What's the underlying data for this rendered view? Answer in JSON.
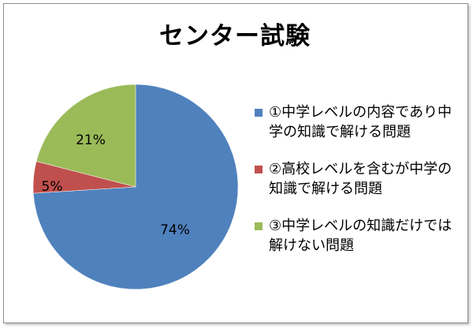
{
  "chart_data": {
    "type": "pie",
    "title": "センター試験",
    "start_angle_deg": 0,
    "direction": "clockwise",
    "slices": [
      {
        "label": "①中学レベルの内容であり中学の知識で解ける問題",
        "value": 74,
        "display": "74%",
        "color": "#4f81bd"
      },
      {
        "label": "②高校レベルを含むが中学の知識で解ける問題",
        "value": 5,
        "display": "5%",
        "color": "#c0504d"
      },
      {
        "label": "③中学レベルの知識だけでは解けない問題",
        "value": 21,
        "display": "21%",
        "color": "#9bbb59"
      }
    ],
    "legend_position": "right"
  }
}
